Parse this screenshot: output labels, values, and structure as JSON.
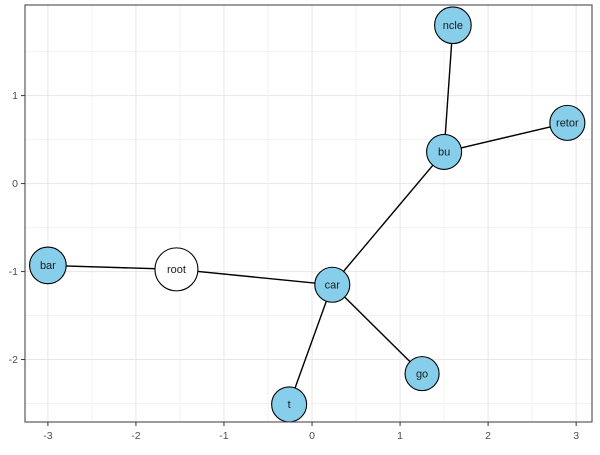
{
  "figure": {
    "background": "#FFFFFF",
    "panel_bg": "#FFFFFF",
    "panel_border_color": "#5A5A5A",
    "grid_major_color": "#E6E6E6",
    "grid_minor_color": "#F2F2F2",
    "tick_mark_color": "#333333",
    "tick_label_color": "#4D4D4D"
  },
  "chart_data": {
    "type": "scatter",
    "subtype": "node-link network graph on cartesian axes",
    "title": "",
    "xlabel": "",
    "ylabel": "",
    "xlim": [
      -3.26,
      3.18
    ],
    "ylim": [
      -2.71,
      2.03
    ],
    "x_ticks": [
      -3,
      -2,
      -1,
      0,
      1,
      2,
      3
    ],
    "y_ticks": [
      -2,
      -1,
      0,
      1
    ],
    "x_minor": [
      -2.5,
      -1.5,
      -0.5,
      0.5,
      1.5,
      2.5
    ],
    "y_minor": [
      -2.5,
      -1.5,
      -0.5,
      0.5,
      1.5
    ],
    "grid": "major and minor, light gray on white",
    "legend": "none",
    "node_border_color": "#000000",
    "edge_color": "#000000",
    "label_color": "#1A1A1A",
    "node_fill_default": "#87CEEB",
    "nodes": [
      {
        "id": "root",
        "label": "root",
        "x": -1.54,
        "y": -0.975,
        "fill": "#FFFFFF",
        "radius_px": 21.5
      },
      {
        "id": "bar",
        "label": "bar",
        "x": -3.0,
        "y": -0.93,
        "fill": "#87CEEB",
        "radius_px": 18.3
      },
      {
        "id": "car",
        "label": "car",
        "x": 0.23,
        "y": -1.15,
        "fill": "#87CEEB",
        "radius_px": 17.5
      },
      {
        "id": "t",
        "label": "t",
        "x": -0.26,
        "y": -2.51,
        "fill": "#87CEEB",
        "radius_px": 17.5
      },
      {
        "id": "go",
        "label": "go",
        "x": 1.25,
        "y": -2.16,
        "fill": "#87CEEB",
        "radius_px": 17
      },
      {
        "id": "bu",
        "label": "bu",
        "x": 1.5,
        "y": 0.36,
        "fill": "#87CEEB",
        "radius_px": 17.5
      },
      {
        "id": "ncle",
        "label": "ncle",
        "x": 1.6,
        "y": 1.8,
        "fill": "#87CEEB",
        "radius_px": 18.3
      },
      {
        "id": "retor",
        "label": "retor",
        "x": 2.9,
        "y": 0.69,
        "fill": "#87CEEB",
        "radius_px": 17.5
      }
    ],
    "edges": [
      [
        "root",
        "bar"
      ],
      [
        "root",
        "car"
      ],
      [
        "car",
        "t"
      ],
      [
        "car",
        "go"
      ],
      [
        "car",
        "bu"
      ],
      [
        "bu",
        "ncle"
      ],
      [
        "bu",
        "retor"
      ]
    ]
  }
}
